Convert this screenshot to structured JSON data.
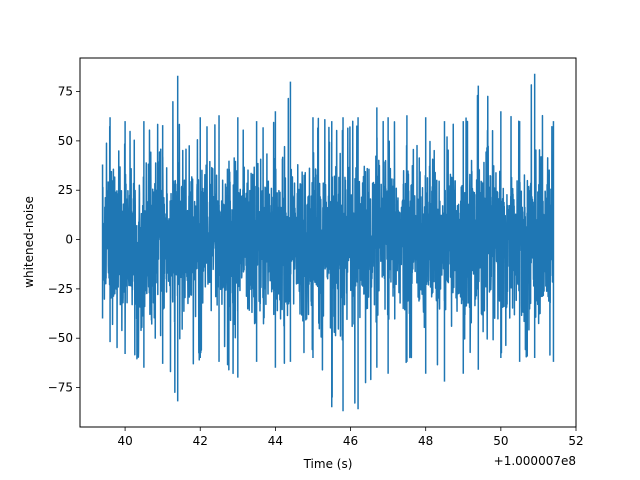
{
  "chart_data": {
    "type": "line",
    "xlabel": "Time (s)",
    "ylabel": "whitened-noise",
    "x_offset_label": "+1.000007e8",
    "xlim": [
      38.8,
      52
    ],
    "ylim": [
      -95,
      92
    ],
    "xticks": [
      40,
      42,
      44,
      46,
      48,
      50,
      52
    ],
    "yticks": [
      -75,
      -50,
      -25,
      0,
      25,
      50,
      75
    ],
    "grid": false,
    "series": [
      {
        "color": "#1f77b4",
        "x_range": [
          39.4,
          51.4
        ],
        "y_typical_range": [
          -38,
          38
        ],
        "envelope": [
          {
            "x": 39.4,
            "min": -40,
            "max": 38
          },
          {
            "x": 39.6,
            "min": -52,
            "max": 62
          },
          {
            "x": 40.0,
            "min": -58,
            "max": 60
          },
          {
            "x": 40.5,
            "min": -65,
            "max": 60
          },
          {
            "x": 41.0,
            "min": -63,
            "max": 58
          },
          {
            "x": 41.4,
            "min": -82,
            "max": 83
          },
          {
            "x": 42.0,
            "min": -60,
            "max": 62
          },
          {
            "x": 42.5,
            "min": -62,
            "max": 63
          },
          {
            "x": 43.0,
            "min": -70,
            "max": 62
          },
          {
            "x": 43.5,
            "min": -62,
            "max": 60
          },
          {
            "x": 44.0,
            "min": -65,
            "max": 65
          },
          {
            "x": 44.4,
            "min": -62,
            "max": 80
          },
          {
            "x": 45.0,
            "min": -60,
            "max": 62
          },
          {
            "x": 45.5,
            "min": -85,
            "max": 60
          },
          {
            "x": 45.8,
            "min": -87,
            "max": 62
          },
          {
            "x": 46.2,
            "min": -86,
            "max": 62
          },
          {
            "x": 46.7,
            "min": -65,
            "max": 67
          },
          {
            "x": 47.0,
            "min": -68,
            "max": 62
          },
          {
            "x": 47.5,
            "min": -62,
            "max": 63
          },
          {
            "x": 48.0,
            "min": -68,
            "max": 62
          },
          {
            "x": 48.5,
            "min": -72,
            "max": 60
          },
          {
            "x": 49.0,
            "min": -68,
            "max": 60
          },
          {
            "x": 49.4,
            "min": -66,
            "max": 78
          },
          {
            "x": 50.0,
            "min": -60,
            "max": 65
          },
          {
            "x": 50.5,
            "min": -62,
            "max": 60
          },
          {
            "x": 50.9,
            "min": -60,
            "max": 84
          },
          {
            "x": 51.4,
            "min": -62,
            "max": 60
          }
        ]
      }
    ]
  }
}
